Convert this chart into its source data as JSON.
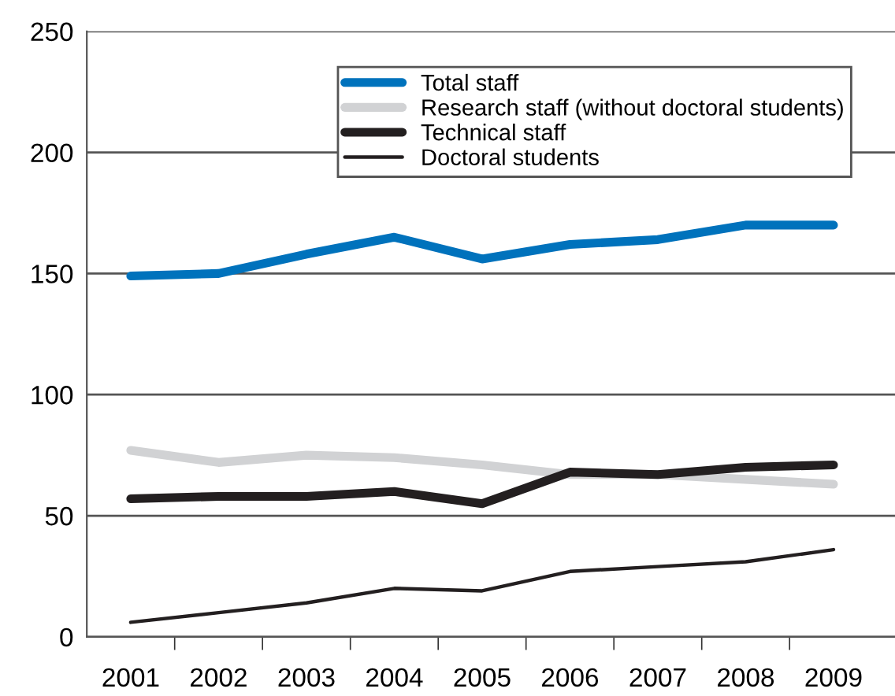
{
  "chart_data": {
    "type": "line",
    "categories": [
      "2001",
      "2002",
      "2003",
      "2004",
      "2005",
      "2006",
      "2007",
      "2008",
      "2009"
    ],
    "series": [
      {
        "name": "Total staff",
        "color": "#0072bc",
        "values": [
          149,
          150,
          158,
          165,
          156,
          162,
          164,
          170,
          170
        ]
      },
      {
        "name": "Research staff (without doctoral students)",
        "color": "#d1d2d4",
        "values": [
          77,
          72,
          75,
          74,
          71,
          67,
          67,
          65,
          63
        ]
      },
      {
        "name": "Technical staff",
        "color": "#231f20",
        "values": [
          57,
          58,
          58,
          60,
          55,
          68,
          67,
          70,
          71
        ]
      },
      {
        "name": "Doctoral students",
        "color": "#231f20",
        "values": [
          6,
          10,
          14,
          20,
          19,
          27,
          29,
          31,
          36
        ]
      }
    ],
    "ylim": [
      0,
      250
    ],
    "yticks": [
      0,
      50,
      100,
      150,
      200,
      250
    ],
    "grid": "y",
    "legend": "top right",
    "marker": "none",
    "line_style": "solid"
  }
}
